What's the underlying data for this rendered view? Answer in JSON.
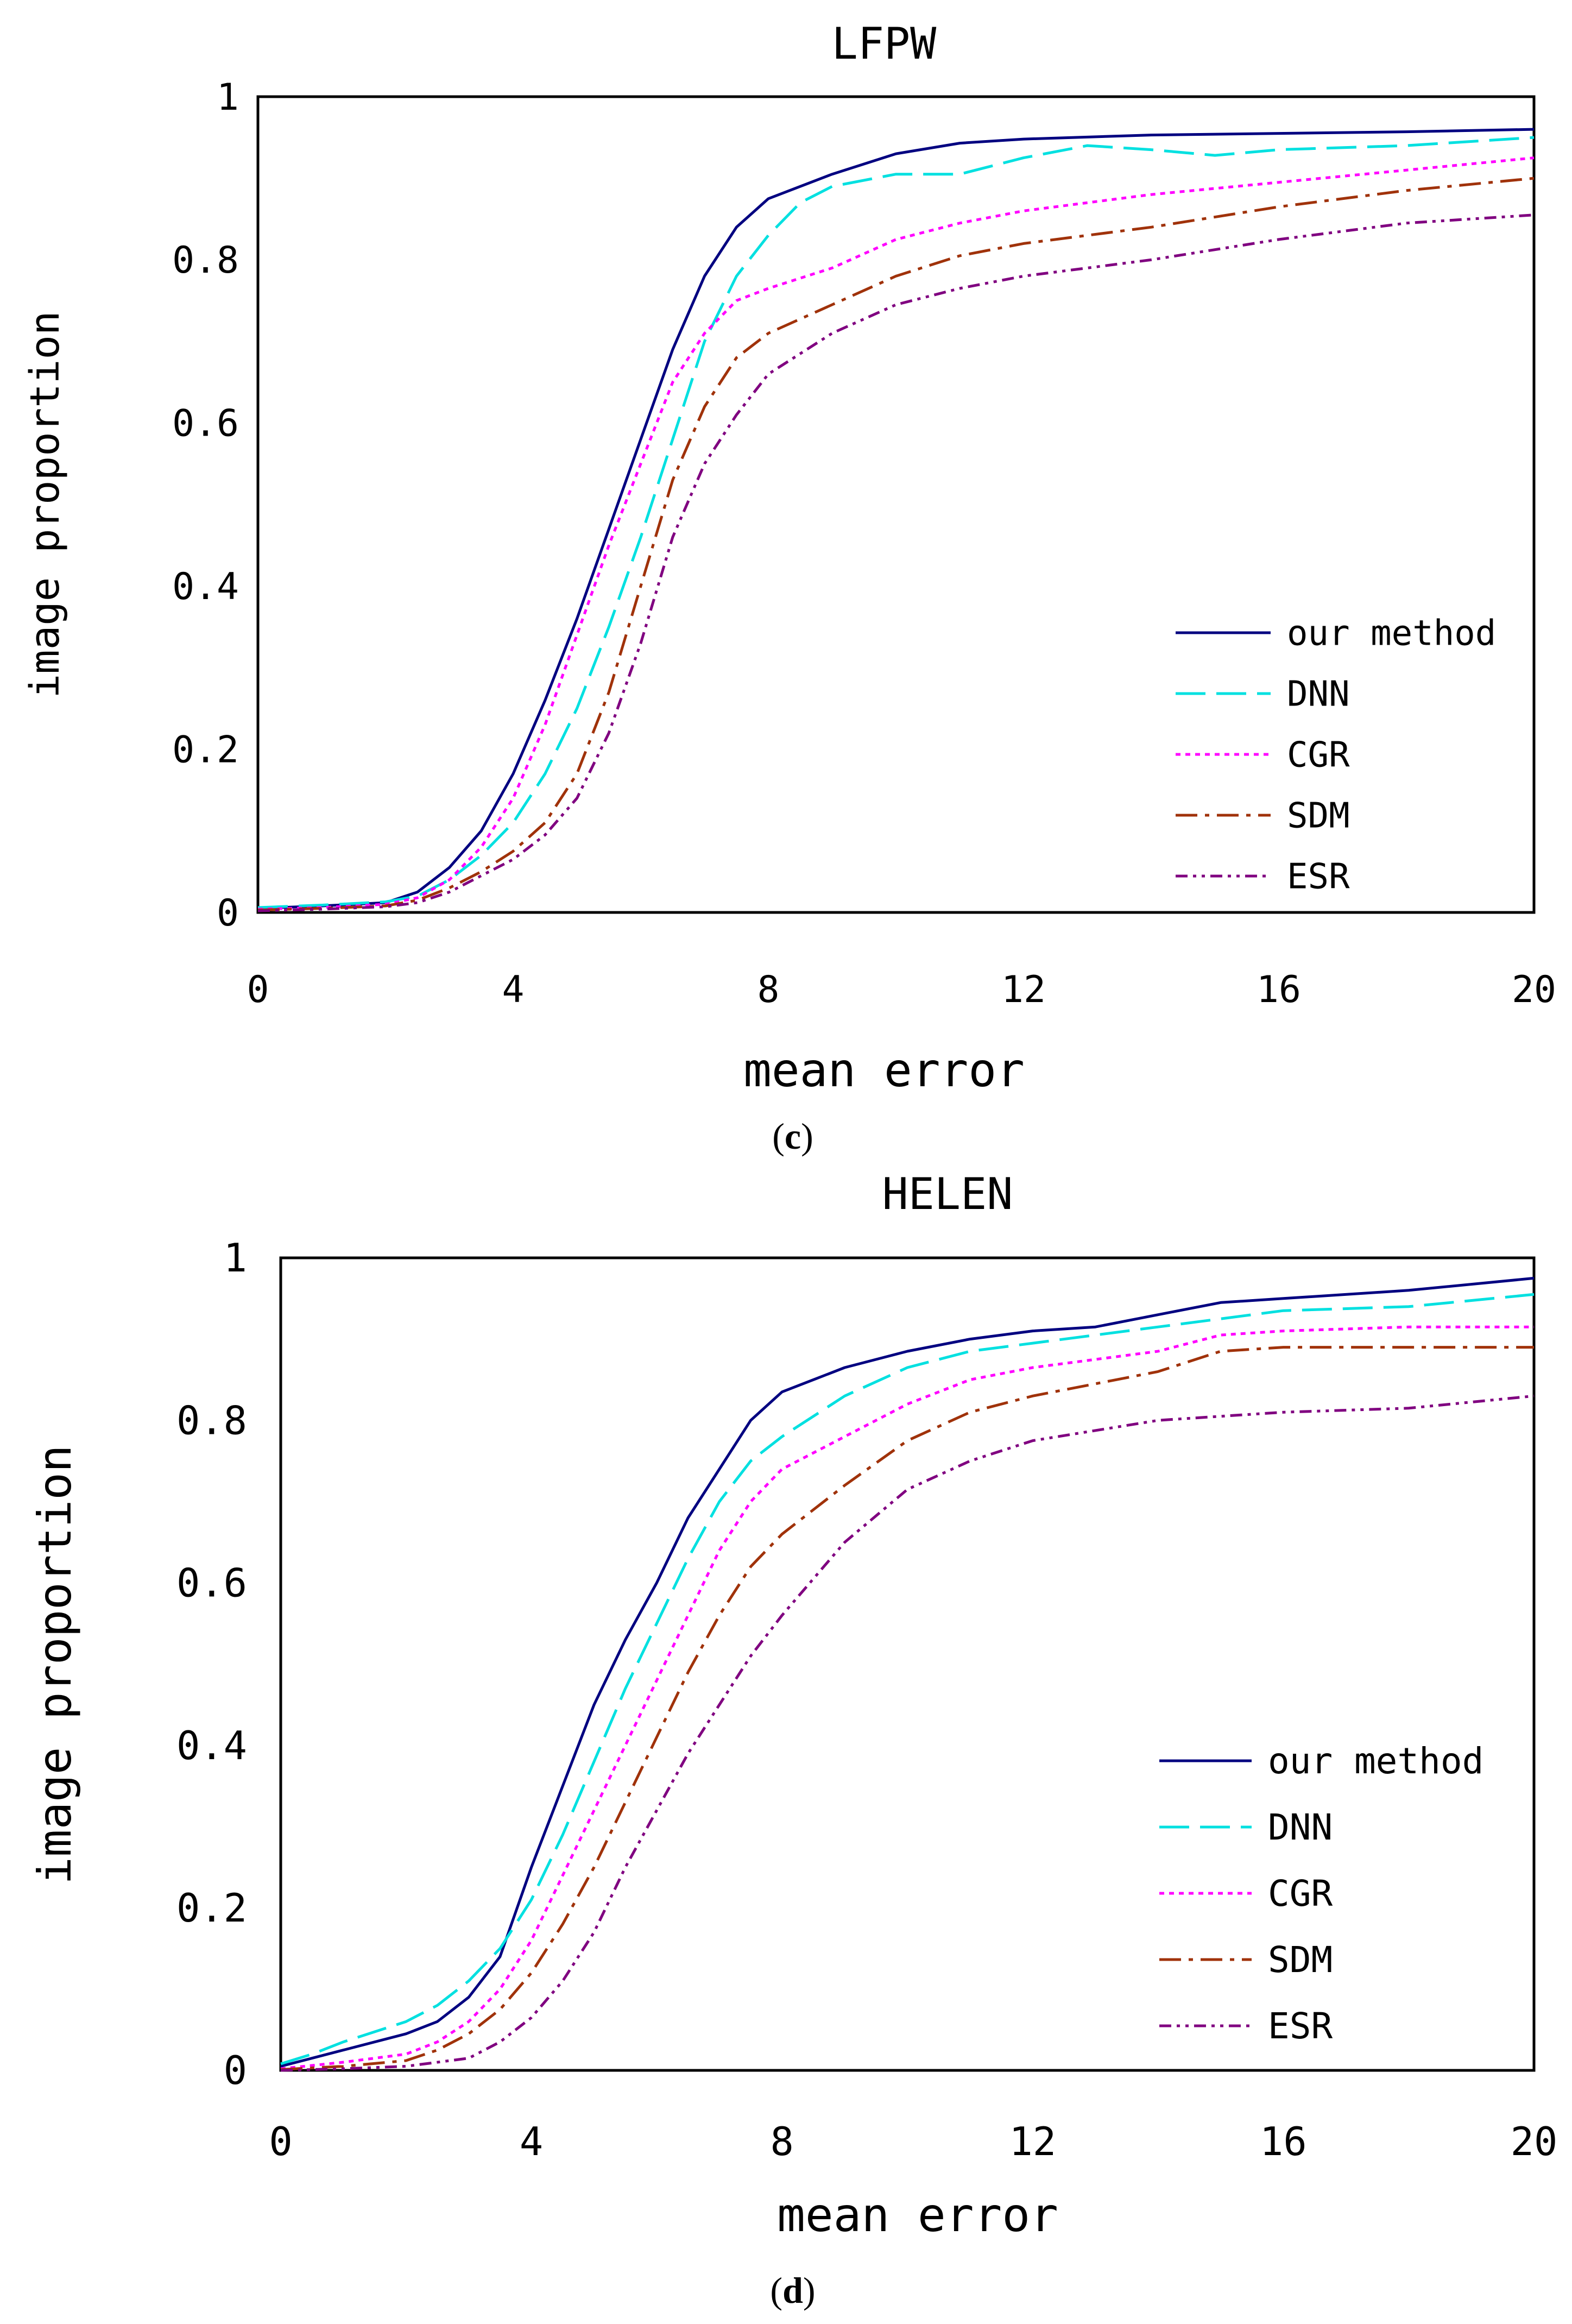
{
  "chart_data": [
    {
      "id": "c",
      "type": "line",
      "title": "LFPW",
      "xlabel": "mean error",
      "ylabel": "image proportion",
      "caption": "c",
      "xlim": [
        0,
        20
      ],
      "ylim": [
        0,
        1
      ],
      "x_ticks": [
        0,
        4,
        8,
        12,
        16,
        20
      ],
      "x_tick_labels": [
        "0",
        "4",
        "8",
        "12",
        "16",
        "20"
      ],
      "y_ticks": [
        0,
        0.2,
        0.4,
        0.6,
        0.8,
        1
      ],
      "y_tick_labels": [
        "0",
        "0.2",
        "0.4",
        "0.6",
        "0.8",
        "1"
      ],
      "grid": false,
      "legend_position": "bottom-right",
      "series": [
        {
          "name": "our method",
          "style": "solid",
          "color": "#000080",
          "points": [
            [
              0,
              0.005
            ],
            [
              1,
              0.008
            ],
            [
              2,
              0.012
            ],
            [
              2.5,
              0.025
            ],
            [
              3,
              0.055
            ],
            [
              3.5,
              0.1
            ],
            [
              4,
              0.17
            ],
            [
              4.5,
              0.26
            ],
            [
              5,
              0.36
            ],
            [
              5.5,
              0.47
            ],
            [
              6,
              0.58
            ],
            [
              6.5,
              0.69
            ],
            [
              7,
              0.78
            ],
            [
              7.5,
              0.84
            ],
            [
              8,
              0.875
            ],
            [
              9,
              0.905
            ],
            [
              10,
              0.93
            ],
            [
              11,
              0.943
            ],
            [
              12,
              0.948
            ],
            [
              14,
              0.953
            ],
            [
              16,
              0.955
            ],
            [
              18,
              0.957
            ],
            [
              20,
              0.96
            ]
          ]
        },
        {
          "name": "DNN",
          "style": "longdash",
          "color": "#00e0e0",
          "points": [
            [
              0,
              0.006
            ],
            [
              1,
              0.009
            ],
            [
              2,
              0.013
            ],
            [
              2.5,
              0.02
            ],
            [
              3,
              0.04
            ],
            [
              3.5,
              0.07
            ],
            [
              4,
              0.11
            ],
            [
              4.5,
              0.17
            ],
            [
              5,
              0.25
            ],
            [
              5.5,
              0.35
            ],
            [
              6,
              0.46
            ],
            [
              6.5,
              0.58
            ],
            [
              7,
              0.7
            ],
            [
              7.5,
              0.78
            ],
            [
              8,
              0.83
            ],
            [
              8.5,
              0.87
            ],
            [
              9,
              0.89
            ],
            [
              10,
              0.905
            ],
            [
              11,
              0.905
            ],
            [
              12,
              0.925
            ],
            [
              13,
              0.94
            ],
            [
              14,
              0.935
            ],
            [
              15,
              0.928
            ],
            [
              16,
              0.935
            ],
            [
              18,
              0.94
            ],
            [
              20,
              0.95
            ]
          ]
        },
        {
          "name": "CGR",
          "style": "dotted",
          "color": "#ff00ff",
          "points": [
            [
              0,
              0.004
            ],
            [
              1,
              0.006
            ],
            [
              2,
              0.01
            ],
            [
              2.5,
              0.018
            ],
            [
              3,
              0.04
            ],
            [
              3.5,
              0.08
            ],
            [
              4,
              0.14
            ],
            [
              4.5,
              0.23
            ],
            [
              5,
              0.34
            ],
            [
              5.5,
              0.45
            ],
            [
              6,
              0.55
            ],
            [
              6.5,
              0.65
            ],
            [
              7,
              0.71
            ],
            [
              7.5,
              0.75
            ],
            [
              8,
              0.765
            ],
            [
              9,
              0.79
            ],
            [
              10,
              0.825
            ],
            [
              11,
              0.845
            ],
            [
              12,
              0.86
            ],
            [
              14,
              0.88
            ],
            [
              16,
              0.895
            ],
            [
              18,
              0.91
            ],
            [
              20,
              0.925
            ]
          ]
        },
        {
          "name": "SDM",
          "style": "dashdot",
          "color": "#a0320a",
          "points": [
            [
              0,
              0.003
            ],
            [
              1,
              0.005
            ],
            [
              2,
              0.008
            ],
            [
              2.5,
              0.015
            ],
            [
              3,
              0.03
            ],
            [
              3.5,
              0.05
            ],
            [
              4,
              0.075
            ],
            [
              4.5,
              0.11
            ],
            [
              5,
              0.17
            ],
            [
              5.5,
              0.27
            ],
            [
              6,
              0.4
            ],
            [
              6.5,
              0.53
            ],
            [
              7,
              0.62
            ],
            [
              7.5,
              0.68
            ],
            [
              8,
              0.71
            ],
            [
              9,
              0.745
            ],
            [
              10,
              0.78
            ],
            [
              11,
              0.805
            ],
            [
              12,
              0.82
            ],
            [
              14,
              0.84
            ],
            [
              16,
              0.865
            ],
            [
              18,
              0.885
            ],
            [
              20,
              0.9
            ]
          ]
        },
        {
          "name": "ESR",
          "style": "dashdotdot",
          "color": "#800080",
          "points": [
            [
              0,
              0.002
            ],
            [
              1,
              0.004
            ],
            [
              2,
              0.007
            ],
            [
              2.5,
              0.012
            ],
            [
              3,
              0.025
            ],
            [
              3.5,
              0.045
            ],
            [
              4,
              0.065
            ],
            [
              4.5,
              0.095
            ],
            [
              5,
              0.14
            ],
            [
              5.5,
              0.22
            ],
            [
              6,
              0.33
            ],
            [
              6.5,
              0.46
            ],
            [
              7,
              0.55
            ],
            [
              7.5,
              0.61
            ],
            [
              8,
              0.66
            ],
            [
              9,
              0.71
            ],
            [
              10,
              0.745
            ],
            [
              11,
              0.765
            ],
            [
              12,
              0.78
            ],
            [
              14,
              0.8
            ],
            [
              16,
              0.825
            ],
            [
              18,
              0.845
            ],
            [
              20,
              0.855
            ]
          ]
        }
      ]
    },
    {
      "id": "d",
      "type": "line",
      "title": "HELEN",
      "xlabel": "mean error",
      "ylabel": "image proportion",
      "caption": "d",
      "xlim": [
        0,
        20
      ],
      "ylim": [
        0,
        1
      ],
      "x_ticks": [
        0,
        4,
        8,
        12,
        16,
        20
      ],
      "x_tick_labels": [
        "0",
        "4",
        "8",
        "12",
        "16",
        "20"
      ],
      "y_ticks": [
        0,
        0.2,
        0.4,
        0.6,
        0.8,
        1
      ],
      "y_tick_labels": [
        "0",
        "0.2",
        "0.4",
        "0.6",
        "0.8",
        "1"
      ],
      "grid": false,
      "legend_position": "bottom-right",
      "series": [
        {
          "name": "our method",
          "style": "solid",
          "color": "#000080",
          "points": [
            [
              0,
              0.005
            ],
            [
              0.5,
              0.015
            ],
            [
              1,
              0.025
            ],
            [
              2,
              0.045
            ],
            [
              2.5,
              0.06
            ],
            [
              3,
              0.09
            ],
            [
              3.5,
              0.14
            ],
            [
              4,
              0.25
            ],
            [
              4.5,
              0.35
            ],
            [
              5,
              0.45
            ],
            [
              5.5,
              0.53
            ],
            [
              6,
              0.6
            ],
            [
              6.5,
              0.68
            ],
            [
              7,
              0.74
            ],
            [
              7.5,
              0.8
            ],
            [
              8,
              0.835
            ],
            [
              9,
              0.865
            ],
            [
              10,
              0.885
            ],
            [
              11,
              0.9
            ],
            [
              12,
              0.91
            ],
            [
              13,
              0.915
            ],
            [
              14,
              0.93
            ],
            [
              15,
              0.945
            ],
            [
              16,
              0.95
            ],
            [
              18,
              0.96
            ],
            [
              20,
              0.975
            ]
          ]
        },
        {
          "name": "DNN",
          "style": "longdash",
          "color": "#00e0e0",
          "points": [
            [
              0,
              0.008
            ],
            [
              0.5,
              0.02
            ],
            [
              1,
              0.035
            ],
            [
              2,
              0.06
            ],
            [
              2.5,
              0.08
            ],
            [
              3,
              0.11
            ],
            [
              3.5,
              0.15
            ],
            [
              4,
              0.21
            ],
            [
              4.5,
              0.29
            ],
            [
              5,
              0.38
            ],
            [
              5.5,
              0.47
            ],
            [
              6,
              0.55
            ],
            [
              6.5,
              0.63
            ],
            [
              7,
              0.7
            ],
            [
              7.5,
              0.75
            ],
            [
              8,
              0.78
            ],
            [
              9,
              0.83
            ],
            [
              10,
              0.865
            ],
            [
              11,
              0.885
            ],
            [
              12,
              0.895
            ],
            [
              14,
              0.915
            ],
            [
              16,
              0.935
            ],
            [
              18,
              0.94
            ],
            [
              20,
              0.955
            ]
          ]
        },
        {
          "name": "CGR",
          "style": "dotted",
          "color": "#ff00ff",
          "points": [
            [
              0,
              0.002
            ],
            [
              1,
              0.01
            ],
            [
              2,
              0.02
            ],
            [
              2.5,
              0.035
            ],
            [
              3,
              0.06
            ],
            [
              3.5,
              0.1
            ],
            [
              4,
              0.16
            ],
            [
              4.5,
              0.24
            ],
            [
              5,
              0.32
            ],
            [
              5.5,
              0.4
            ],
            [
              6,
              0.48
            ],
            [
              6.5,
              0.56
            ],
            [
              7,
              0.64
            ],
            [
              7.5,
              0.7
            ],
            [
              8,
              0.74
            ],
            [
              9,
              0.78
            ],
            [
              10,
              0.82
            ],
            [
              11,
              0.85
            ],
            [
              12,
              0.865
            ],
            [
              14,
              0.885
            ],
            [
              15,
              0.905
            ],
            [
              16,
              0.91
            ],
            [
              18,
              0.915
            ],
            [
              20,
              0.915
            ]
          ]
        },
        {
          "name": "SDM",
          "style": "dashdot",
          "color": "#a0320a",
          "points": [
            [
              0,
              0.001
            ],
            [
              1,
              0.005
            ],
            [
              2,
              0.012
            ],
            [
              2.5,
              0.025
            ],
            [
              3,
              0.045
            ],
            [
              3.5,
              0.075
            ],
            [
              4,
              0.12
            ],
            [
              4.5,
              0.18
            ],
            [
              5,
              0.25
            ],
            [
              5.5,
              0.33
            ],
            [
              6,
              0.41
            ],
            [
              6.5,
              0.49
            ],
            [
              7,
              0.56
            ],
            [
              7.5,
              0.62
            ],
            [
              8,
              0.66
            ],
            [
              9,
              0.72
            ],
            [
              10,
              0.775
            ],
            [
              11,
              0.81
            ],
            [
              12,
              0.83
            ],
            [
              14,
              0.86
            ],
            [
              15,
              0.885
            ],
            [
              16,
              0.89
            ],
            [
              18,
              0.89
            ],
            [
              20,
              0.89
            ]
          ]
        },
        {
          "name": "ESR",
          "style": "dashdotdot",
          "color": "#800080",
          "points": [
            [
              0,
              0
            ],
            [
              1,
              0.002
            ],
            [
              2,
              0.005
            ],
            [
              3,
              0.015
            ],
            [
              3.5,
              0.035
            ],
            [
              4,
              0.065
            ],
            [
              4.5,
              0.11
            ],
            [
              5,
              0.17
            ],
            [
              5.5,
              0.25
            ],
            [
              6,
              0.32
            ],
            [
              6.5,
              0.39
            ],
            [
              7,
              0.45
            ],
            [
              7.5,
              0.51
            ],
            [
              8,
              0.56
            ],
            [
              9,
              0.65
            ],
            [
              10,
              0.715
            ],
            [
              11,
              0.75
            ],
            [
              12,
              0.775
            ],
            [
              14,
              0.8
            ],
            [
              16,
              0.81
            ],
            [
              18,
              0.815
            ],
            [
              20,
              0.83
            ]
          ]
        }
      ]
    }
  ]
}
